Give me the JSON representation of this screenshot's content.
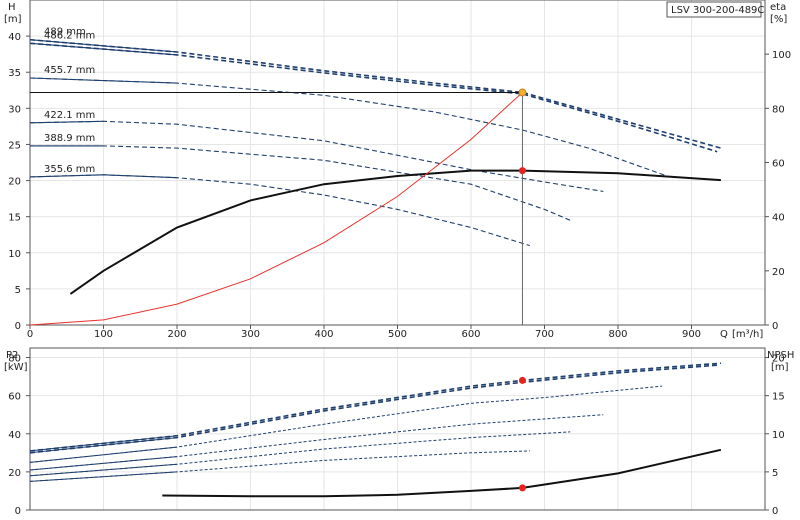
{
  "chart_data": [
    {
      "type": "line",
      "ylabel": "H",
      "yunit": "[m]",
      "y2label": "eta",
      "y2unit": "[%]",
      "xlabel": "Q",
      "xunit": "[m³/h]",
      "xlim": [
        0,
        1000
      ],
      "ylim": [
        0,
        45
      ],
      "y2lim": [
        0,
        120
      ],
      "xticks": [
        0,
        100,
        200,
        300,
        400,
        500,
        600,
        700,
        800,
        900
      ],
      "yticks": [
        0,
        5,
        10,
        15,
        20,
        25,
        30,
        35,
        40
      ],
      "y2ticks": [
        0,
        20,
        40,
        60,
        80,
        100
      ],
      "grid": true,
      "legend_box": "LSV 300-200-489C",
      "head_curves": [
        {
          "label": "489 mm",
          "x": [
            0,
            200,
            400,
            550,
            670,
            800,
            940
          ],
          "y": [
            39.5,
            37.8,
            35.2,
            33.5,
            32.2,
            28.5,
            24.5
          ]
        },
        {
          "label": "486.2 mm",
          "x": [
            0,
            200,
            400,
            550,
            670,
            800,
            935
          ],
          "y": [
            39.0,
            37.4,
            34.9,
            33.2,
            32.0,
            28.2,
            24.0
          ]
        },
        {
          "label": "455.7 mm",
          "x": [
            0,
            200,
            400,
            550,
            670,
            760,
            870
          ],
          "y": [
            34.2,
            33.5,
            31.8,
            29.5,
            27.0,
            24.5,
            20.5
          ]
        },
        {
          "label": "422.1 mm",
          "x": [
            0,
            100,
            200,
            400,
            600,
            700,
            780
          ],
          "y": [
            28.0,
            28.2,
            27.8,
            25.5,
            21.5,
            19.8,
            18.5
          ]
        },
        {
          "label": "388.9 mm",
          "x": [
            0,
            100,
            200,
            400,
            600,
            700,
            735
          ],
          "y": [
            24.8,
            24.8,
            24.5,
            22.8,
            19.5,
            16.0,
            14.5
          ]
        },
        {
          "label": "355.6 mm",
          "x": [
            0,
            100,
            200,
            300,
            400,
            500,
            600,
            680
          ],
          "y": [
            20.5,
            20.8,
            20.4,
            19.5,
            18.0,
            16.0,
            13.5,
            11.0
          ]
        }
      ],
      "efficiency_curve": {
        "x": [
          55,
          100,
          200,
          300,
          400,
          500,
          600,
          670,
          800,
          940
        ],
        "y": [
          11.5,
          20,
          36,
          46,
          52,
          55,
          57,
          57,
          56,
          53.5
        ]
      },
      "system_curve": {
        "x": [
          0,
          100,
          200,
          300,
          400,
          500,
          600,
          670
        ],
        "y": [
          0,
          0.7,
          2.9,
          6.4,
          11.4,
          17.8,
          25.7,
          32.2
        ]
      },
      "duty_point": {
        "Q": 670,
        "H": 32.2,
        "eta": 57
      }
    },
    {
      "type": "line",
      "ylabel": "P2",
      "yunit": "[kW]",
      "y2label": "NPSH",
      "y2unit": "[m]",
      "xlim": [
        0,
        1000
      ],
      "ylim": [
        0,
        85
      ],
      "y2lim": [
        0,
        21.25
      ],
      "yticks": [
        0,
        20,
        40,
        60,
        80
      ],
      "y2ticks": [
        0,
        5,
        10,
        15,
        20
      ],
      "grid": true,
      "power_curves": [
        {
          "x": [
            0,
            200,
            400,
            600,
            670,
            800,
            940
          ],
          "y": [
            31,
            39,
            53,
            65,
            68,
            73,
            77
          ]
        },
        {
          "x": [
            0,
            200,
            400,
            600,
            670,
            800,
            935
          ],
          "y": [
            30,
            38,
            52,
            64,
            67,
            72,
            76
          ]
        },
        {
          "x": [
            0,
            200,
            400,
            600,
            700,
            860
          ],
          "y": [
            25,
            33,
            45,
            56,
            59,
            65
          ]
        },
        {
          "x": [
            0,
            200,
            400,
            600,
            780
          ],
          "y": [
            21,
            28,
            37,
            45,
            50
          ]
        },
        {
          "x": [
            0,
            200,
            400,
            600,
            735
          ],
          "y": [
            18,
            24,
            32,
            38,
            41
          ]
        },
        {
          "x": [
            0,
            200,
            400,
            600,
            680
          ],
          "y": [
            15,
            20,
            26,
            30,
            31
          ]
        }
      ],
      "npsh_curve": {
        "x": [
          180,
          300,
          400,
          500,
          600,
          670,
          800,
          940
        ],
        "y": [
          1.9,
          1.8,
          1.8,
          2.0,
          2.5,
          2.9,
          4.8,
          7.9
        ]
      },
      "duty_point": {
        "P2": 68,
        "NPSH": 2.9
      }
    }
  ]
}
